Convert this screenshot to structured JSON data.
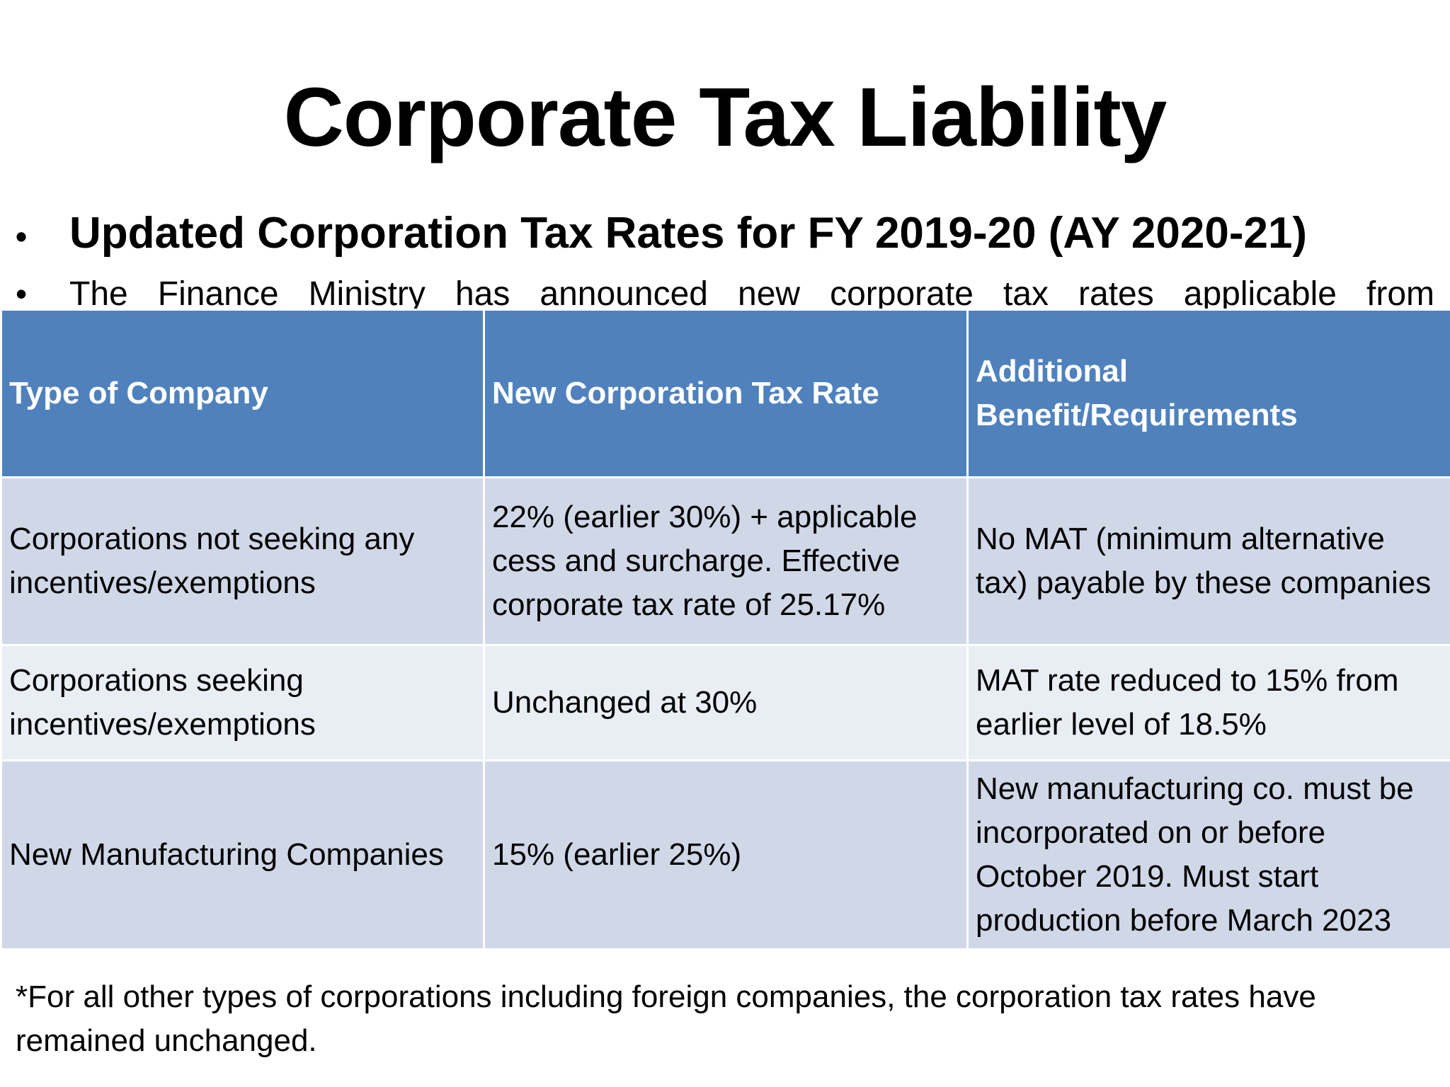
{
  "slide": {
    "title": "Corporate Tax Liability",
    "bullets": [
      "Updated Corporation Tax Rates for FY 2019-20 (AY 2020-21)",
      "The Finance Ministry has announced new corporate tax rates applicable from"
    ],
    "bullet_symbol": "•"
  },
  "table": {
    "headers": [
      "Type of Company",
      "New Corporation Tax Rate",
      "Additional Benefit/Requirements"
    ],
    "rows": [
      [
        "Corporations not seeking any incentives/exemptions",
        "22% (earlier 30%) + applicable cess and surcharge. Effective corporate tax rate of 25.17%",
        "No MAT (minimum alternative tax) payable by these companies"
      ],
      [
        "Corporations seeking incentives/exemptions",
        "Unchanged at 30%",
        "MAT rate reduced to 15% from earlier level of 18.5%"
      ],
      [
        "New Manufacturing Companies",
        "15% (earlier 25%)",
        "New manufacturing co. must be incorporated on or before October 2019. Must start production before March 2023"
      ]
    ]
  },
  "footnote": "*For all other types of corporations including foreign companies, the corporation tax rates have remained unchanged.",
  "colors": {
    "header_bg": "#4f81bd",
    "row_odd_bg": "#d0d8e8",
    "row_even_bg": "#e9edf4"
  }
}
